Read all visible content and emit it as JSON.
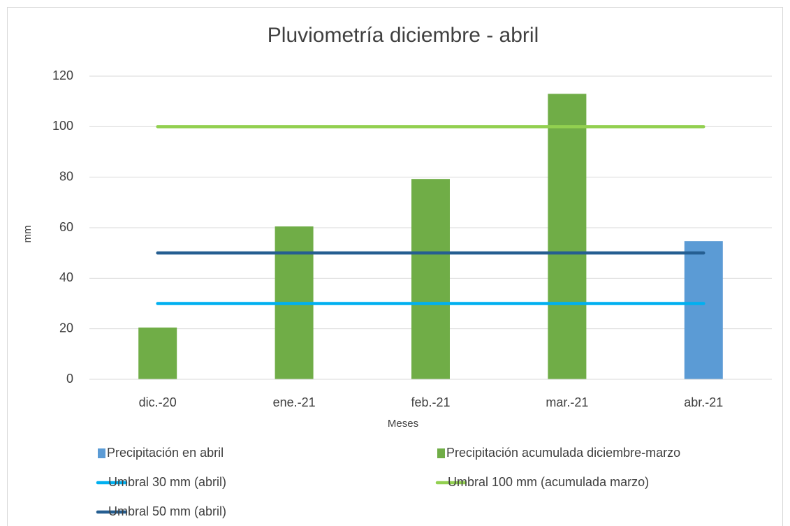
{
  "chart_data": {
    "type": "bar",
    "title": "Pluviometría diciembre - abril",
    "x_label": "Meses",
    "y_label": "mm",
    "categories": [
      "dic.-20",
      "ene.-21",
      "feb.-21",
      "mar.-21",
      "abr.-21"
    ],
    "series": [
      {
        "name": "Precipitación en abril",
        "type": "bar",
        "color": "#5b9bd5",
        "values": [
          null,
          null,
          null,
          null,
          54.7
        ]
      },
      {
        "name": "Precipitación acumulada diciembre-marzo",
        "type": "bar",
        "color": "#70ad47",
        "values": [
          20.5,
          60.5,
          79.3,
          113,
          null
        ]
      },
      {
        "name": "Umbral 30 mm (abril)",
        "type": "line",
        "color": "#00b0f0",
        "values": [
          30,
          30,
          30,
          30,
          30
        ]
      },
      {
        "name": "Umbral 100 mm (acumulada marzo)",
        "type": "line",
        "color": "#92d050",
        "values": [
          100,
          100,
          100,
          100,
          100
        ]
      },
      {
        "name": "Umbral 50 mm (abril)",
        "type": "line",
        "color": "#255e91",
        "values": [
          50,
          50,
          50,
          50,
          50
        ]
      }
    ],
    "ylim": [
      0,
      120
    ],
    "yticks": [
      0,
      20,
      40,
      60,
      80,
      100,
      120
    ],
    "grid": true,
    "legend": "bottom"
  }
}
